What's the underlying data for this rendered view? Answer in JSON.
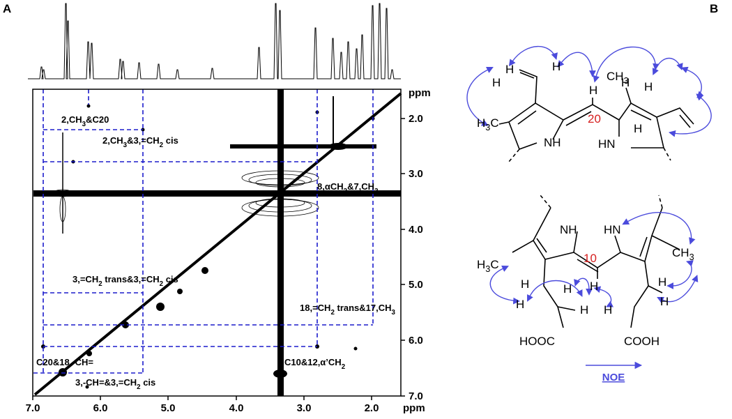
{
  "panel_a": {
    "label": "A",
    "x_axis": {
      "ticks": [
        "7.0",
        "6.0",
        "5.0",
        "4.0",
        "3.0",
        "2.0"
      ],
      "unit": "ppm"
    },
    "y_axis": {
      "ticks": [
        "2.0",
        "3.0",
        "4.0",
        "5.0",
        "6.0",
        "7.0"
      ],
      "unit": "ppm"
    },
    "annotations": [
      [
        "2,CH",
        "3",
        "&C20"
      ],
      [
        "2,CH",
        "3",
        "&3,=CH",
        "2",
        " cis"
      ],
      [
        "8,αCH",
        "2",
        "&7,CH",
        "3"
      ],
      [
        "3,=CH",
        "2",
        " trans&3,=CH",
        "2",
        " cis"
      ],
      [
        "18,=CH",
        "2",
        " trans&17,CH",
        "3"
      ],
      [
        "C20&18,-CH="
      ],
      [
        "C10&12,α’CH",
        "2"
      ],
      [
        "3,-CH=&3,=CH",
        "2",
        " cis"
      ]
    ]
  },
  "panel_b": {
    "label": "B",
    "structure_top": {
      "labels": [
        [
          "H"
        ],
        [
          "H"
        ],
        [
          "H"
        ],
        [
          "H"
        ],
        [
          "CH",
          "3"
        ],
        [
          "H"
        ],
        [
          "H"
        ],
        [
          "H"
        ],
        [
          "H",
          "3",
          "C"
        ],
        [
          "NH"
        ],
        [
          "HN"
        ],
        [
          "20"
        ]
      ]
    },
    "structure_bottom": {
      "labels": [
        [
          "NH"
        ],
        [
          "HN"
        ],
        [
          "H",
          "3",
          "C"
        ],
        [
          "CH",
          "3"
        ],
        [
          "10"
        ],
        [
          "H"
        ],
        [
          "H"
        ],
        [
          "H"
        ],
        [
          "H"
        ],
        [
          "H"
        ],
        [
          "H"
        ],
        [
          "H"
        ],
        [
          "H"
        ],
        [
          "HOOC"
        ],
        [
          "COOH"
        ]
      ]
    },
    "legend": "NOE"
  }
}
